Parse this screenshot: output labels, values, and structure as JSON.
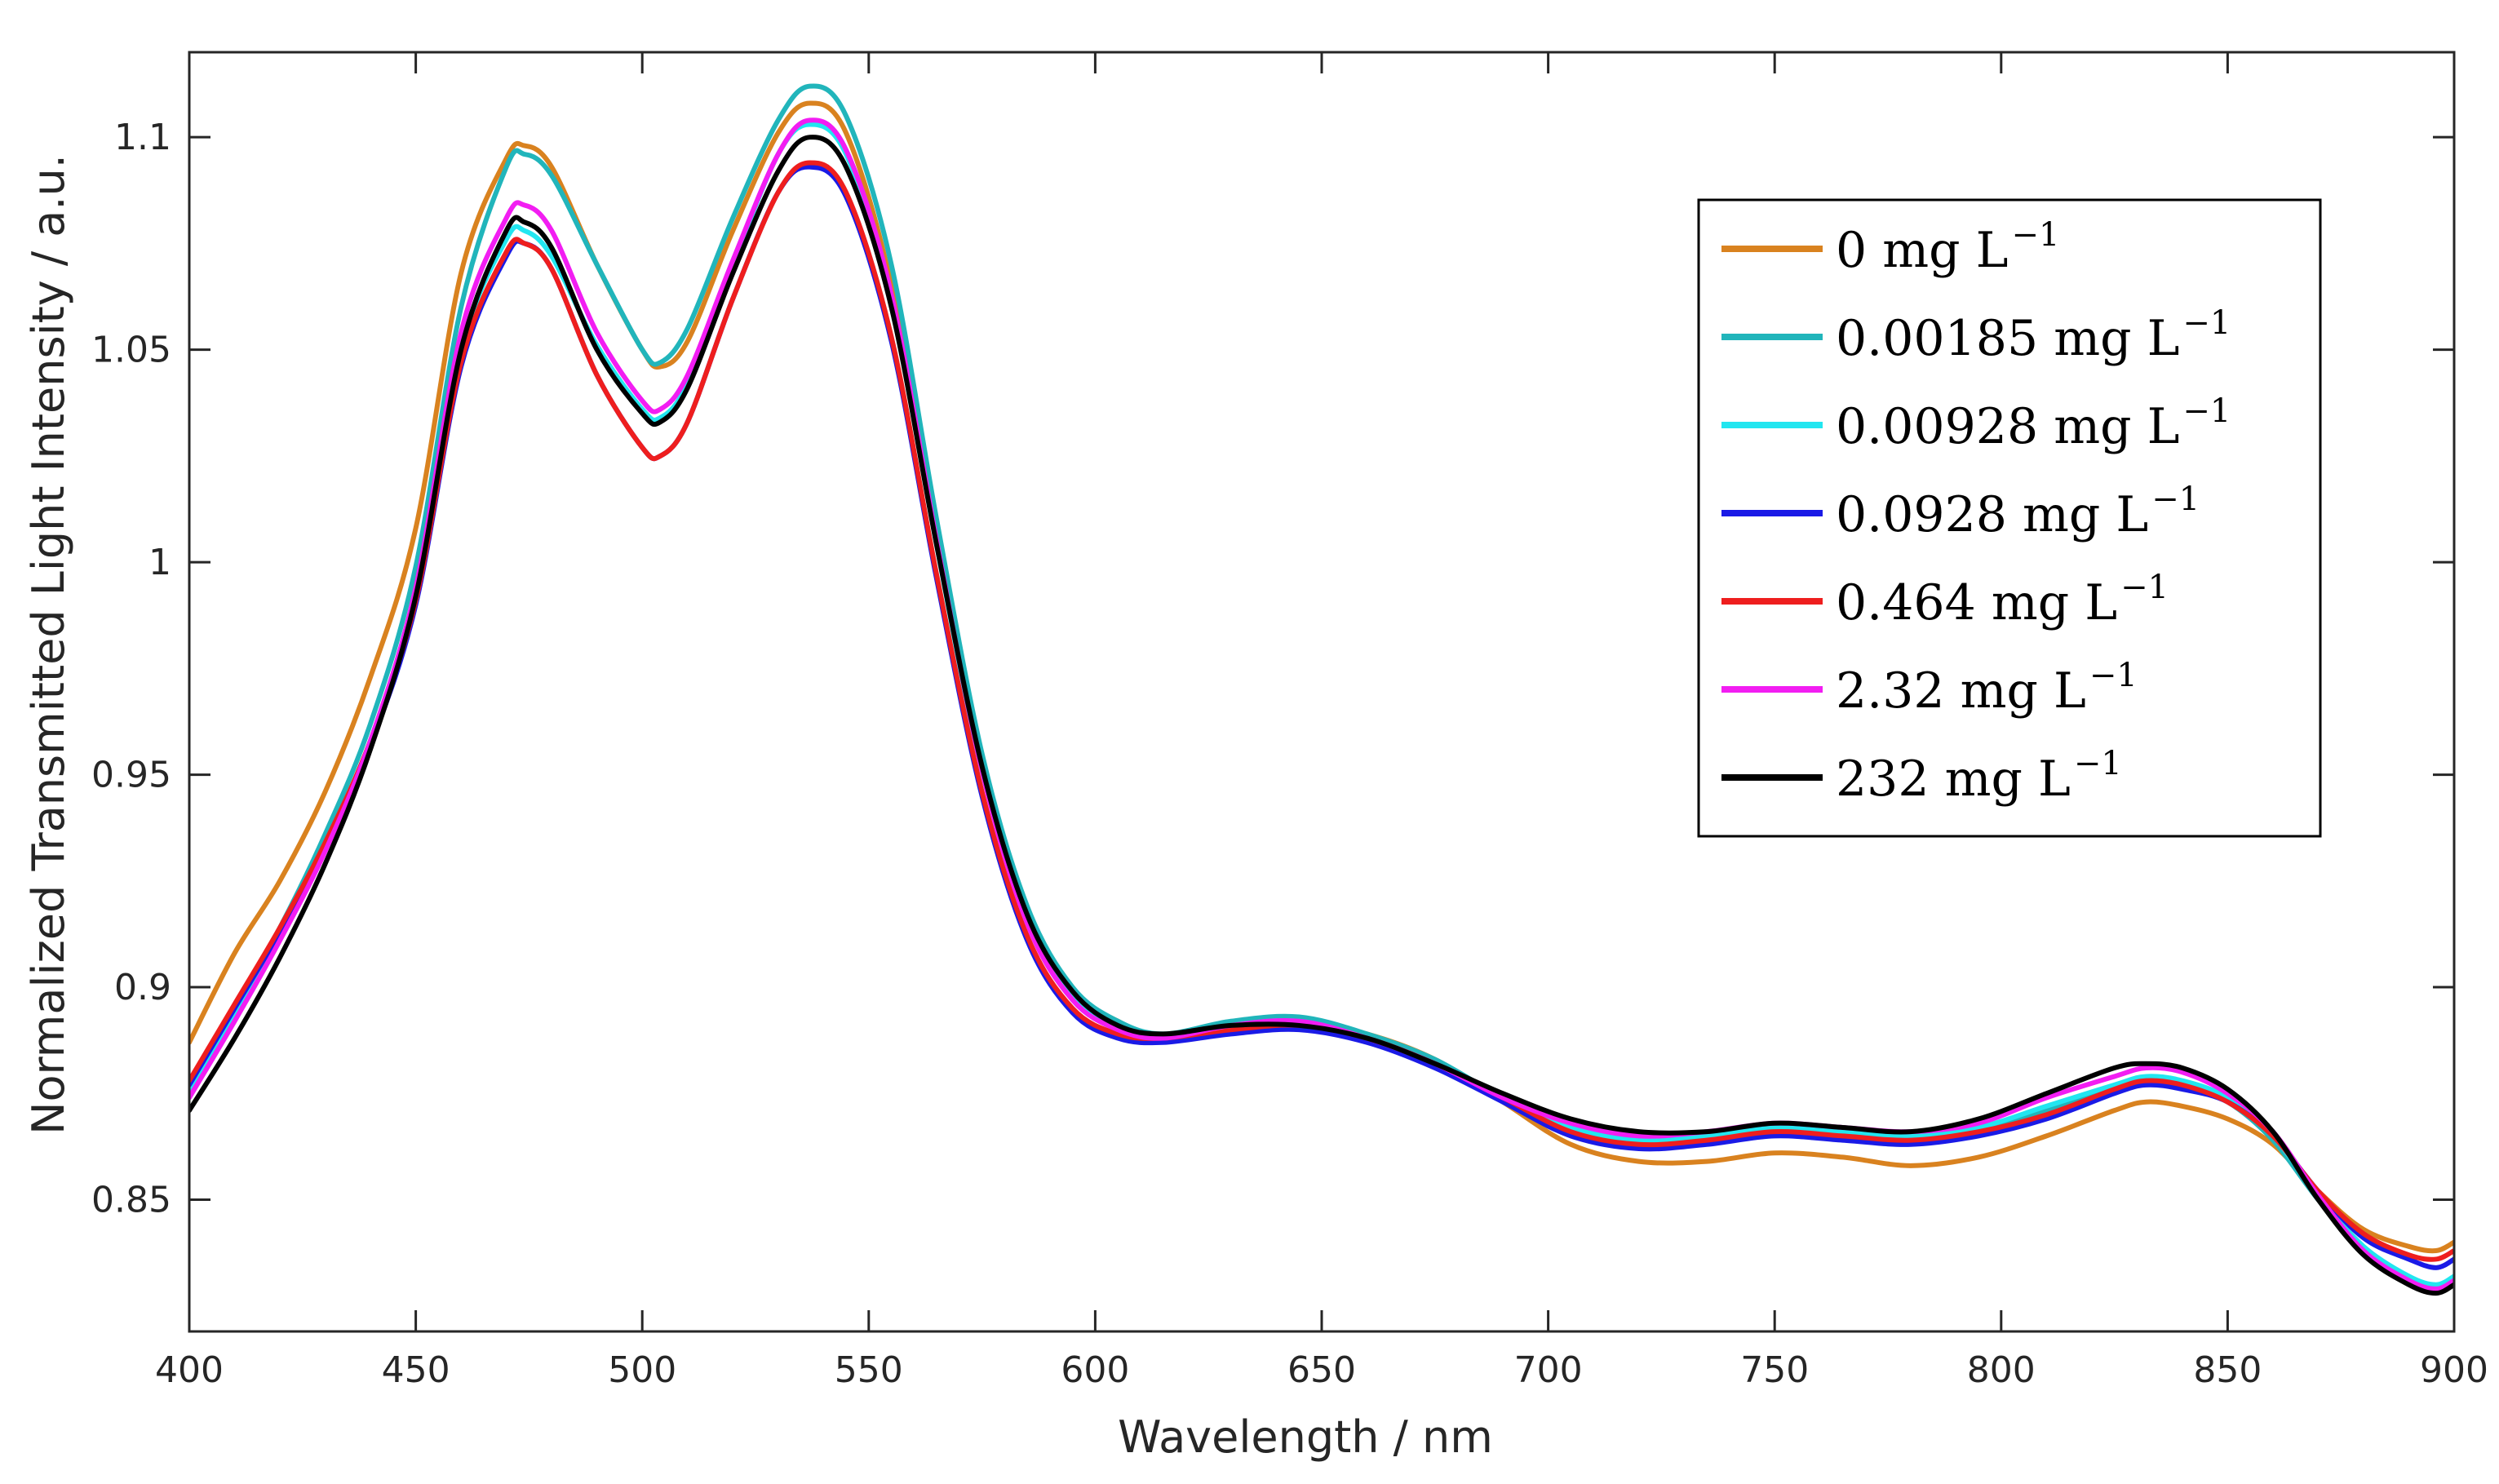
{
  "chart_data": {
    "type": "line",
    "title": "",
    "xlabel": "Wavelength / nm",
    "ylabel": "Normalized Transmitted Light Intensity  / a.u.",
    "xlim": [
      400,
      900
    ],
    "ylim": [
      0.819,
      1.12
    ],
    "x_ticks": [
      400,
      450,
      500,
      550,
      600,
      650,
      700,
      750,
      800,
      850,
      900
    ],
    "x_tick_labels": [
      "400",
      "450",
      "500",
      "550",
      "600",
      "650",
      "700",
      "750",
      "800",
      "850",
      "900"
    ],
    "y_ticks": [
      0.85,
      0.9,
      0.95,
      1.0,
      1.05,
      1.1
    ],
    "y_tick_labels": [
      "0.85",
      "0.9",
      "0.95",
      "1",
      "1.05",
      "1.1"
    ],
    "grid": false,
    "legend_position": "top-right",
    "x": [
      400,
      410,
      420,
      430,
      440,
      450,
      460,
      470,
      474,
      480,
      490,
      500,
      504,
      510,
      520,
      530,
      537,
      545,
      555,
      565,
      575,
      585,
      595,
      605,
      615,
      630,
      645,
      660,
      675,
      690,
      705,
      720,
      735,
      750,
      765,
      780,
      795,
      810,
      825,
      832,
      840,
      850,
      860,
      870,
      880,
      890,
      896,
      900
    ],
    "series": [
      {
        "name": "0 mg L",
        "superscript": "−1",
        "color": "#D9821F",
        "values": [
          0.887,
          0.908,
          0.925,
          0.946,
          0.973,
          1.008,
          1.068,
          1.095,
          1.098,
          1.093,
          1.07,
          1.05,
          1.046,
          1.052,
          1.078,
          1.101,
          1.108,
          1.101,
          1.065,
          1.005,
          0.952,
          0.917,
          0.899,
          0.892,
          0.888,
          0.891,
          0.892,
          0.889,
          0.883,
          0.873,
          0.863,
          0.859,
          0.859,
          0.861,
          0.86,
          0.858,
          0.86,
          0.865,
          0.871,
          0.873,
          0.872,
          0.869,
          0.863,
          0.852,
          0.843,
          0.839,
          0.838,
          0.84
        ]
      },
      {
        "name": "0.00185 mg L",
        "superscript": "−1",
        "color": "#21B5BB",
        "values": [
          0.876,
          0.895,
          0.914,
          0.936,
          0.962,
          0.999,
          1.06,
          1.093,
          1.096,
          1.091,
          1.07,
          1.05,
          1.047,
          1.055,
          1.081,
          1.104,
          1.112,
          1.105,
          1.07,
          1.01,
          0.955,
          0.919,
          0.9,
          0.892,
          0.889,
          0.892,
          0.893,
          0.889,
          0.883,
          0.874,
          0.867,
          0.863,
          0.864,
          0.866,
          0.865,
          0.864,
          0.866,
          0.871,
          0.876,
          0.878,
          0.877,
          0.873,
          0.864,
          0.85,
          0.838,
          0.831,
          0.829,
          0.831
        ]
      },
      {
        "name": "0.00928 mg L",
        "superscript": "−1",
        "color": "#22E6F0",
        "values": [
          0.875,
          0.894,
          0.912,
          0.933,
          0.958,
          0.993,
          1.05,
          1.076,
          1.078,
          1.072,
          1.051,
          1.036,
          1.034,
          1.042,
          1.07,
          1.096,
          1.103,
          1.096,
          1.062,
          1.004,
          0.951,
          0.916,
          0.898,
          0.89,
          0.888,
          0.891,
          0.892,
          0.888,
          0.882,
          0.874,
          0.867,
          0.864,
          0.865,
          0.867,
          0.866,
          0.865,
          0.867,
          0.872,
          0.877,
          0.879,
          0.878,
          0.874,
          0.865,
          0.851,
          0.839,
          0.832,
          0.83,
          0.832
        ]
      },
      {
        "name": "0.0928 mg L",
        "superscript": "−1",
        "color": "#1A1AE6",
        "values": [
          0.877,
          0.895,
          0.913,
          0.933,
          0.957,
          0.99,
          1.046,
          1.072,
          1.075,
          1.069,
          1.044,
          1.027,
          1.025,
          1.033,
          1.062,
          1.087,
          1.093,
          1.086,
          1.052,
          0.996,
          0.945,
          0.911,
          0.894,
          0.888,
          0.887,
          0.889,
          0.89,
          0.887,
          0.881,
          0.873,
          0.865,
          0.862,
          0.863,
          0.865,
          0.864,
          0.863,
          0.865,
          0.869,
          0.875,
          0.877,
          0.876,
          0.873,
          0.865,
          0.852,
          0.841,
          0.836,
          0.834,
          0.836
        ]
      },
      {
        "name": "0.464 mg L",
        "superscript": "−1",
        "color": "#EE1E1E",
        "values": [
          0.878,
          0.896,
          0.914,
          0.934,
          0.958,
          0.991,
          1.047,
          1.073,
          1.075,
          1.069,
          1.044,
          1.027,
          1.025,
          1.033,
          1.062,
          1.087,
          1.094,
          1.087,
          1.053,
          0.997,
          0.946,
          0.912,
          0.895,
          0.889,
          0.888,
          0.89,
          0.891,
          0.888,
          0.882,
          0.874,
          0.866,
          0.863,
          0.864,
          0.866,
          0.865,
          0.864,
          0.866,
          0.87,
          0.876,
          0.878,
          0.877,
          0.873,
          0.865,
          0.852,
          0.842,
          0.837,
          0.836,
          0.838
        ]
      },
      {
        "name": "2.32 mg L",
        "superscript": "−1",
        "color": "#F21DF2",
        "values": [
          0.874,
          0.892,
          0.911,
          0.932,
          0.958,
          0.994,
          1.054,
          1.081,
          1.084,
          1.078,
          1.054,
          1.038,
          1.036,
          1.044,
          1.071,
          1.096,
          1.104,
          1.097,
          1.063,
          1.005,
          0.951,
          0.915,
          0.897,
          0.89,
          0.888,
          0.891,
          0.892,
          0.888,
          0.882,
          0.874,
          0.868,
          0.865,
          0.866,
          0.868,
          0.867,
          0.866,
          0.868,
          0.874,
          0.879,
          0.881,
          0.88,
          0.875,
          0.866,
          0.851,
          0.838,
          0.831,
          0.829,
          0.831
        ]
      },
      {
        "name": "232 mg L",
        "superscript": "−1",
        "color": "#000000",
        "values": [
          0.871,
          0.888,
          0.907,
          0.929,
          0.956,
          0.992,
          1.05,
          1.078,
          1.08,
          1.074,
          1.05,
          1.035,
          1.033,
          1.041,
          1.068,
          1.092,
          1.1,
          1.093,
          1.06,
          1.004,
          0.952,
          0.917,
          0.899,
          0.891,
          0.889,
          0.891,
          0.891,
          0.888,
          0.882,
          0.875,
          0.869,
          0.866,
          0.866,
          0.868,
          0.867,
          0.866,
          0.869,
          0.875,
          0.881,
          0.882,
          0.881,
          0.876,
          0.866,
          0.85,
          0.837,
          0.83,
          0.828,
          0.83
        ]
      }
    ]
  }
}
